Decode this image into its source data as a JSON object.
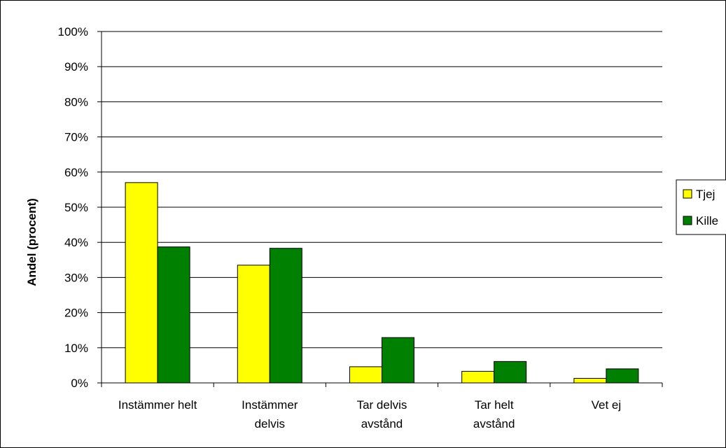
{
  "chart_data": {
    "type": "bar",
    "title": "",
    "xlabel": "",
    "ylabel": "Andel (procent)",
    "ylim": [
      0,
      100
    ],
    "yticks": [
      "0%",
      "10%",
      "20%",
      "30%",
      "40%",
      "50%",
      "60%",
      "70%",
      "80%",
      "90%",
      "100%"
    ],
    "grid": true,
    "legend_position": "right",
    "categories": [
      [
        "Instämmer helt"
      ],
      [
        "Instämmer",
        "delvis"
      ],
      [
        "Tar delvis",
        "avstånd"
      ],
      [
        "Tar helt",
        "avstånd"
      ],
      [
        "Vet ej"
      ]
    ],
    "series": [
      {
        "name": "Tjej",
        "color": "#FFFF00",
        "values": [
          57,
          33.5,
          4.6,
          3.3,
          1.3
        ]
      },
      {
        "name": "Kille",
        "color": "#008000",
        "values": [
          38.7,
          38.3,
          12.9,
          6.1,
          4.0
        ]
      }
    ]
  }
}
